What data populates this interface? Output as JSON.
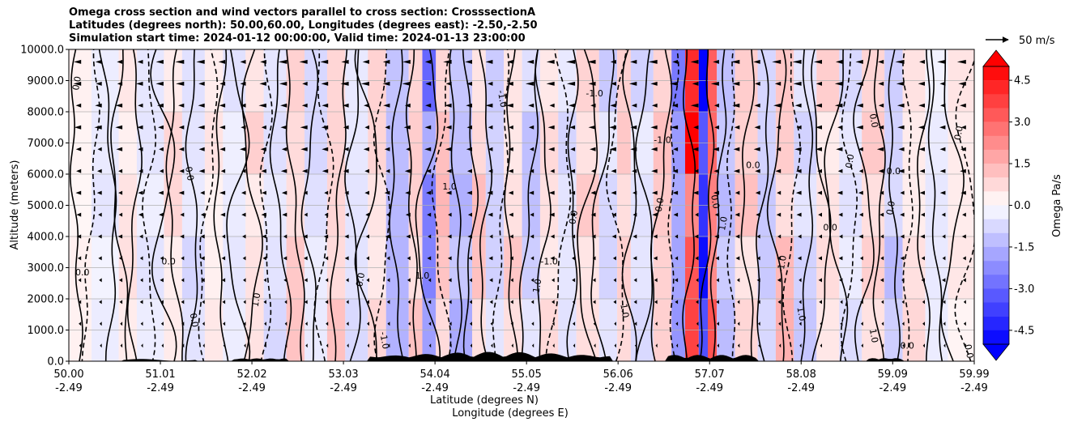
{
  "chart_data": {
    "type": "heatmap",
    "title_lines": [
      "Omega cross section and wind vectors parallel to cross section: CrosssectionA",
      "Latitudes (degrees north): 50.00,60.00, Longitudes (degrees east): -2.50,-2.50",
      "Simulation start time: 2024-01-12 00:00:00, Valid time: 2024-01-13 23:00:00"
    ],
    "ylabel": "Altitude (meters)",
    "xlabel_lines": [
      "Latitude (degrees N)",
      "Longitude (degrees E)"
    ],
    "ylim": [
      0,
      10000
    ],
    "xlim": [
      50.0,
      59.99
    ],
    "y_ticks": [
      "0.0",
      "1000.0",
      "2000.0",
      "3000.0",
      "4000.0",
      "5000.0",
      "6000.0",
      "7000.0",
      "8000.0",
      "9000.0",
      "10000.0"
    ],
    "x_ticks": [
      {
        "lat": "50.00",
        "lon": "-2.49"
      },
      {
        "lat": "51.01",
        "lon": "-2.49"
      },
      {
        "lat": "52.02",
        "lon": "-2.49"
      },
      {
        "lat": "53.03",
        "lon": "-2.49"
      },
      {
        "lat": "54.04",
        "lon": "-2.49"
      },
      {
        "lat": "55.05",
        "lon": "-2.49"
      },
      {
        "lat": "56.06",
        "lon": "-2.49"
      },
      {
        "lat": "57.07",
        "lon": "-2.49"
      },
      {
        "lat": "58.08",
        "lon": "-2.49"
      },
      {
        "lat": "59.09",
        "lon": "-2.49"
      },
      {
        "lat": "59.99",
        "lon": "-2.49"
      }
    ],
    "colorbar": {
      "label": "Omega Pa/s",
      "min": -5.0,
      "max": 5.0,
      "ticks": [
        "-4.5",
        "-3.0",
        "-1.5",
        "0.0",
        "1.5",
        "3.0",
        "4.5"
      ],
      "negative_color": "#0000ff",
      "positive_color": "#ff0000",
      "mid_color": "#ffffff"
    },
    "vector_key": {
      "label": "50 m/s"
    },
    "contour_labels": [
      {
        "text": "0.0",
        "lat": 50.15,
        "alt": 2750
      },
      {
        "text": "0.0",
        "lat": 50.12,
        "alt": 8900
      },
      {
        "text": "0.0",
        "lat": 51.3,
        "alt": 6000
      },
      {
        "text": "0.0",
        "lat": 51.1,
        "alt": 3100
      },
      {
        "text": "0.0",
        "lat": 51.35,
        "alt": 1300
      },
      {
        "text": "1.0",
        "lat": 52.1,
        "alt": 1950
      },
      {
        "text": "1.0",
        "lat": 53.9,
        "alt": 2650
      },
      {
        "text": "0.0",
        "lat": 53.25,
        "alt": 2600
      },
      {
        "text": "-1.0",
        "lat": 53.45,
        "alt": 650
      },
      {
        "text": "1.0",
        "lat": 54.2,
        "alt": 5500
      },
      {
        "text": "-1.0",
        "lat": 54.75,
        "alt": 8400
      },
      {
        "text": "1.0",
        "lat": 55.2,
        "alt": 2400
      },
      {
        "text": "-1.0",
        "lat": 55.3,
        "alt": 3100
      },
      {
        "text": "0.0",
        "lat": 56.55,
        "alt": 5000
      },
      {
        "text": "1.0",
        "lat": 56.1,
        "alt": 1600
      },
      {
        "text": "-1.0",
        "lat": 56.55,
        "alt": 7000
      },
      {
        "text": "0.0",
        "lat": 57.1,
        "alt": 5100
      },
      {
        "text": "1.0",
        "lat": 57.25,
        "alt": 4400
      },
      {
        "text": "0.0",
        "lat": 57.55,
        "alt": 6200
      },
      {
        "text": "-1.0",
        "lat": 57.9,
        "alt": 3100
      },
      {
        "text": "1.0",
        "lat": 58.05,
        "alt": 1500
      },
      {
        "text": "0.0",
        "lat": 58.4,
        "alt": 4200
      },
      {
        "text": "0.0",
        "lat": 58.85,
        "alt": 7700
      },
      {
        "text": "0.0",
        "lat": 58.65,
        "alt": 6400
      },
      {
        "text": "0.0",
        "lat": 59.1,
        "alt": 6000
      },
      {
        "text": "0.0",
        "lat": 59.1,
        "alt": 4900
      },
      {
        "text": "1.0",
        "lat": 58.85,
        "alt": 800
      },
      {
        "text": "0.0",
        "lat": 59.25,
        "alt": 400
      },
      {
        "text": "0.0",
        "lat": 59.9,
        "alt": 300
      },
      {
        "text": "0.0",
        "lat": 59.85,
        "alt": 7300
      },
      {
        "text": "-1.0",
        "lat": 55.8,
        "alt": 8500
      },
      {
        "text": "0.0",
        "lat": 55.6,
        "alt": 4600
      }
    ]
  }
}
